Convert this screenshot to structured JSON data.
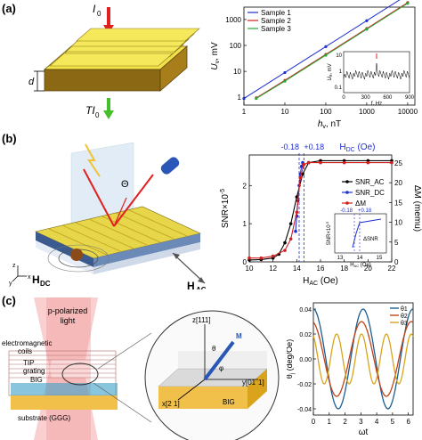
{
  "panels": {
    "a": {
      "label": "(a)",
      "diagram": {
        "incident_label": "I",
        "incident_sub": "0",
        "transmitted_label": "TI",
        "transmitted_sub": "0",
        "thickness_label": "d"
      },
      "chart": {
        "ylabel": "U",
        "ylabel_sub": "v",
        "ylabel_unit": ", mV",
        "xlabel": "h",
        "xlabel_sub": "v",
        "xlabel_unit": ", nT",
        "yticks": [
          "1000",
          "100",
          "10",
          "1"
        ],
        "xticks": [
          "1",
          "10",
          "100",
          "1000",
          "10000"
        ],
        "inset": {
          "ylabel": "U",
          "ylabel_sub": "v",
          "ylabel_unit": ", mV",
          "xlabel": "f, Hz",
          "yticks": [
            "10",
            "1",
            "0.1"
          ],
          "xticks": [
            "0",
            "300",
            "600",
            "900"
          ]
        }
      }
    },
    "b": {
      "label": "(b)",
      "diagram": {
        "theta": "Θ",
        "hdc": "H",
        "hdc_sub": "DC",
        "hac": "H",
        "hac_sub": "AC",
        "axis_z": "z",
        "axis_x": "x",
        "axis_y": "y"
      },
      "chart": {
        "top_left": "-0.18",
        "top_right": "+0.18",
        "top_h": "H",
        "top_h_sub": "DC",
        "top_unit": " (Oe)",
        "ylabel_left": "SNR×10",
        "ylabel_left_sup": "-5",
        "ylabel_right": "ΔM (memu)",
        "xlabel": "H",
        "xlabel_sub": "AC",
        "xlabel_unit": " (Oe)",
        "yticks_left": [
          "0",
          "1",
          "2"
        ],
        "yticks_right": [
          "0",
          "5",
          "10",
          "15",
          "20",
          "25"
        ],
        "xticks": [
          "10",
          "12",
          "14",
          "16",
          "18",
          "20",
          "22"
        ],
        "inset": {
          "top_left": "-0.18",
          "top_right": "+0.18",
          "ylabel": "SNR×10",
          "ylabel_sup": "-5",
          "delta": "ΔSNR",
          "xlabel": "H",
          "xlabel_sub": "AC",
          "xlabel_unit": " (Oe)",
          "xticks": [
            "13",
            "14",
            "15"
          ]
        }
      }
    },
    "c": {
      "label": "(c)",
      "diagram": {
        "light": "p-polarized",
        "light2": "light",
        "coils": "electromagnetic",
        "coils2": "coils",
        "tip": "TIP",
        "grating": "grating",
        "big": "BIG",
        "substrate": "substrate (GGG)",
        "z_axis": "z[111]",
        "y_axis": "y[01",
        "y_axis2": "1]",
        "x_axis": "x[2",
        "x_axis2": "1]",
        "big2": "BIG",
        "m": "M",
        "theta": "θ",
        "phi": "φ"
      },
      "chart": {
        "ylabel": "θ",
        "ylabel_sub": "j",
        "ylabel_unit": " (deg/Oe)",
        "xlabel": "ωt",
        "yticks": [
          "0.04",
          "0.02",
          "0.00",
          "-0.02",
          "-0.04"
        ],
        "xticks": [
          "0",
          "1",
          "2",
          "3",
          "4",
          "5",
          "6"
        ]
      }
    }
  },
  "chart_data": [
    {
      "type": "line",
      "panel": "a",
      "xlabel": "h_v, nT",
      "ylabel": "U_v, mV",
      "xscale": "log",
      "yscale": "log",
      "xlim": [
        1,
        15000
      ],
      "ylim": [
        0.5,
        3000
      ],
      "legend_position": "top-left",
      "series": [
        {
          "name": "Sample 1",
          "color": "#1f2fd0",
          "x": [
            1,
            10,
            100,
            1000,
            10000
          ],
          "y": [
            0.9,
            9,
            90,
            900,
            9000
          ]
        },
        {
          "name": "Sample 2",
          "color": "#d01f1f",
          "x": [
            2,
            10,
            100,
            1000,
            10000
          ],
          "y": [
            0.95,
            4.5,
            45,
            450,
            4500
          ]
        },
        {
          "name": "Sample 3",
          "color": "#22aa33",
          "x": [
            2,
            10,
            100,
            1000,
            10000
          ],
          "y": [
            0.9,
            4.2,
            42,
            420,
            4200
          ]
        }
      ]
    },
    {
      "type": "line",
      "panel": "a-inset",
      "xlabel": "f, Hz",
      "ylabel": "U_v, mV",
      "xlim": [
        0,
        1000
      ],
      "ylim": [
        0.1,
        10
      ],
      "yscale": "log",
      "series": [
        {
          "color": "#000000",
          "peak_x": 500,
          "peak_y": 8
        }
      ]
    },
    {
      "type": "line",
      "panel": "b",
      "xlabel": "H_AC (Oe)",
      "ylabel": "SNR×10^-5",
      "ylabel_right": "ΔM (memu)",
      "xlim": [
        10,
        22
      ],
      "ylim": [
        0,
        2.8
      ],
      "ylim_right": [
        0,
        27
      ],
      "legend_position": "center-right",
      "series": [
        {
          "name": "SNR_AC",
          "color": "#000000",
          "x": [
            10,
            11,
            12,
            12.5,
            13,
            13.5,
            14,
            14.5,
            15,
            16,
            18,
            20,
            22
          ],
          "y": [
            0.05,
            0.06,
            0.1,
            0.2,
            0.5,
            1.0,
            1.7,
            2.3,
            2.6,
            2.65,
            2.65,
            2.65,
            2.65
          ]
        },
        {
          "name": "SNR_DC",
          "color": "#1f2fd0",
          "x": [
            13.9,
            14.0,
            14.1,
            14.2,
            14.3,
            14.4,
            14.5
          ],
          "y": [
            0.8,
            1.2,
            1.6,
            2.0,
            2.3,
            2.5,
            2.6
          ]
        },
        {
          "name": "ΔM",
          "color": "#d01f1f",
          "x": [
            10,
            11,
            12,
            13,
            13.5,
            14,
            14.3,
            14.6,
            15,
            16,
            18,
            20,
            22
          ],
          "y": [
            0.1,
            0.1,
            0.15,
            0.3,
            0.6,
            1.3,
            2.2,
            2.55,
            2.6,
            2.6,
            2.6,
            2.6,
            2.6
          ]
        }
      ],
      "annotations": [
        "-0.18",
        "+0.18"
      ]
    },
    {
      "type": "line",
      "panel": "c",
      "xlabel": "ωt",
      "ylabel": "θ_j (deg/Oe)",
      "xlim": [
        0,
        6.3
      ],
      "ylim": [
        -0.045,
        0.045
      ],
      "legend_position": "top-right",
      "series": [
        {
          "name": "θ1",
          "color": "#1a5d8f",
          "amp": 0.04,
          "freq": 2,
          "phase": 0
        },
        {
          "name": "θ2",
          "color": "#c0431a",
          "amp": 0.03,
          "freq": 2,
          "phase": 0.2
        },
        {
          "name": "θ3",
          "color": "#d9a41b",
          "amp": 0.02,
          "freq": 4,
          "phase": 0.4
        }
      ]
    }
  ]
}
